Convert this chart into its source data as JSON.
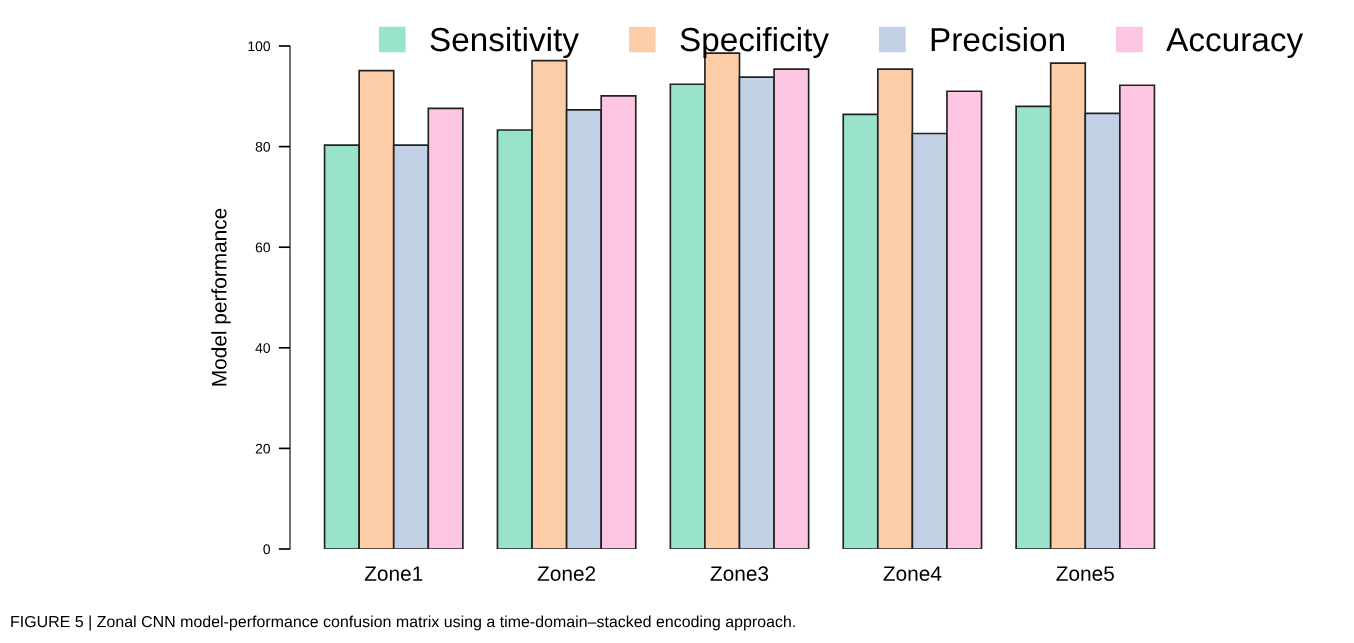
{
  "chart_data": {
    "type": "bar",
    "ylabel": "Model performance",
    "categories": [
      "Zone1",
      "Zone2",
      "Zone3",
      "Zone4",
      "Zone5"
    ],
    "series": [
      {
        "name": "Sensitivity",
        "color": "#99e2cb",
        "values": [
          80.3,
          83.3,
          92.4,
          86.4,
          88.0
        ]
      },
      {
        "name": "Specificity",
        "color": "#fdcda8",
        "values": [
          95.1,
          97.1,
          98.6,
          95.4,
          96.6
        ]
      },
      {
        "name": "Precision",
        "color": "#c3d1e6",
        "values": [
          80.3,
          87.3,
          93.8,
          82.6,
          86.6
        ]
      },
      {
        "name": "Accuracy",
        "color": "#fcc5e2",
        "values": [
          87.6,
          90.1,
          95.4,
          91.0,
          92.2
        ]
      }
    ],
    "ylim": [
      0,
      100
    ],
    "yticks": [
      0,
      20,
      40,
      60,
      80,
      100
    ],
    "grid": false,
    "legend": "top",
    "annotations": [
      "FIGURE 5 | Zonal CNN model-performance confusion matrix using a time-domain–stacked encoding approach."
    ]
  }
}
